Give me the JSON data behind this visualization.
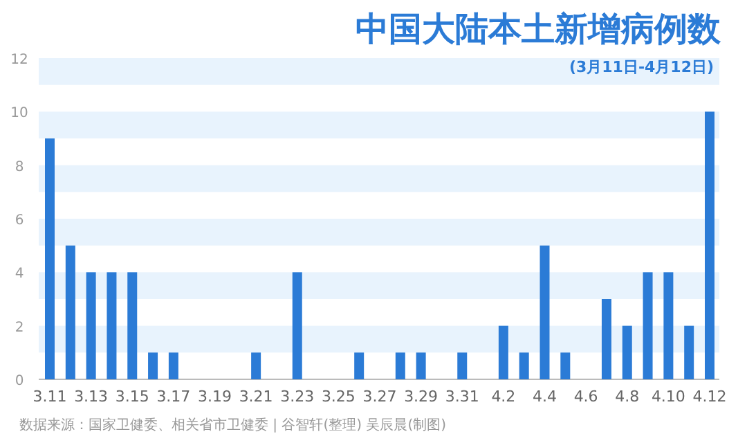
{
  "chart_data": {
    "type": "bar",
    "title": "中国大陆本土新增病例数",
    "subtitle": "(3月11日-4月12日)",
    "categories": [
      "3.11",
      null,
      "3.13",
      null,
      "3.15",
      null,
      "3.17",
      null,
      "3.19",
      null,
      "3.21",
      null,
      "3.23",
      null,
      "3.25",
      null,
      "3.27",
      null,
      "3.29",
      null,
      "3.31",
      null,
      "4.2",
      null,
      "4.4",
      null,
      "4.6",
      null,
      "4.8",
      null,
      "4.10",
      null,
      "4.12"
    ],
    "values": [
      9,
      5,
      4,
      4,
      4,
      1,
      1,
      0,
      0,
      0,
      1,
      0,
      4,
      0,
      0,
      1,
      0,
      1,
      1,
      0,
      1,
      0,
      2,
      1,
      5,
      1,
      0,
      3,
      2,
      4,
      4,
      2,
      10
    ],
    "color": "#2b7bd6",
    "bands": [
      {
        "axis": "y",
        "from": 1,
        "to": 2,
        "color": "#e8f3fd"
      },
      {
        "axis": "y",
        "from": 3,
        "to": 4,
        "color": "#e8f3fd"
      },
      {
        "axis": "y",
        "from": 5,
        "to": 6,
        "color": "#e8f3fd"
      },
      {
        "axis": "y",
        "from": 7,
        "to": 8,
        "color": "#e8f3fd"
      },
      {
        "axis": "y",
        "from": 9,
        "to": 10,
        "color": "#e8f3fd"
      },
      {
        "axis": "y",
        "from": 11,
        "to": 12,
        "color": "#e8f3fd"
      }
    ],
    "ylim": [
      0,
      12
    ],
    "yticks": [
      0,
      2,
      4,
      6,
      8,
      10,
      12
    ],
    "annotations": [
      "数据来源：国家卫健委、相关省市卫健委 | 谷智轩(整理) 吴辰晨(制图)"
    ]
  }
}
